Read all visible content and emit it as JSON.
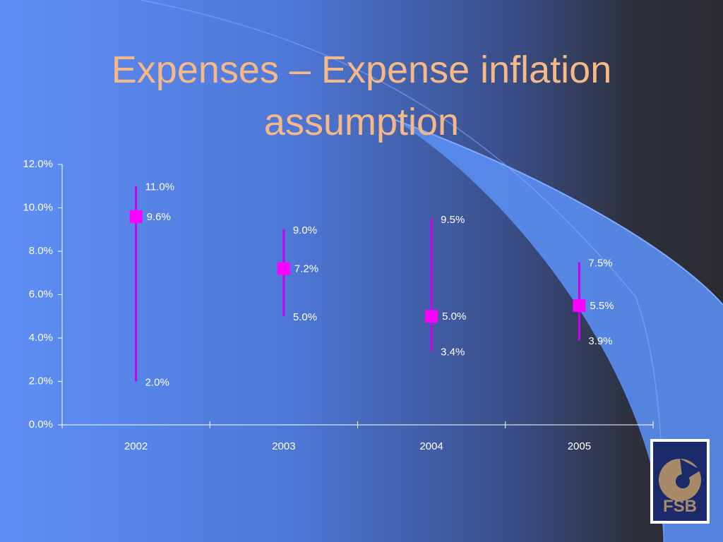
{
  "chart_data": {
    "type": "range",
    "title": "Expenses – Expense inflation assumption",
    "categories": [
      "2002",
      "2003",
      "2004",
      "2005"
    ],
    "high": {
      "values": [
        11.0,
        9.0,
        9.5,
        7.5
      ],
      "value_labels": [
        "11.0%",
        "9.0%",
        "9.5%",
        "7.5%"
      ]
    },
    "mid": {
      "values": [
        9.6,
        7.2,
        5.0,
        5.5
      ],
      "value_labels": [
        "9.6%",
        "7.2%",
        "5.0%",
        "5.5%"
      ]
    },
    "low": {
      "values": [
        2.0,
        5.0,
        3.4,
        3.9
      ],
      "value_labels": [
        "2.0%",
        "5.0%",
        "3.4%",
        "3.9%"
      ]
    },
    "color": "#ff00ff",
    "line_color": "#cc00ee",
    "ylim": [
      0,
      12
    ],
    "yticks": [
      {
        "value": 0,
        "label": "0.0%"
      },
      {
        "value": 2,
        "label": "2.0%"
      },
      {
        "value": 4,
        "label": "4.0%"
      },
      {
        "value": 6,
        "label": "6.0%"
      },
      {
        "value": 8,
        "label": "8.0%"
      },
      {
        "value": 10,
        "label": "10.0%"
      },
      {
        "value": 12,
        "label": "12.0%"
      }
    ]
  },
  "logo_text": "FSB"
}
